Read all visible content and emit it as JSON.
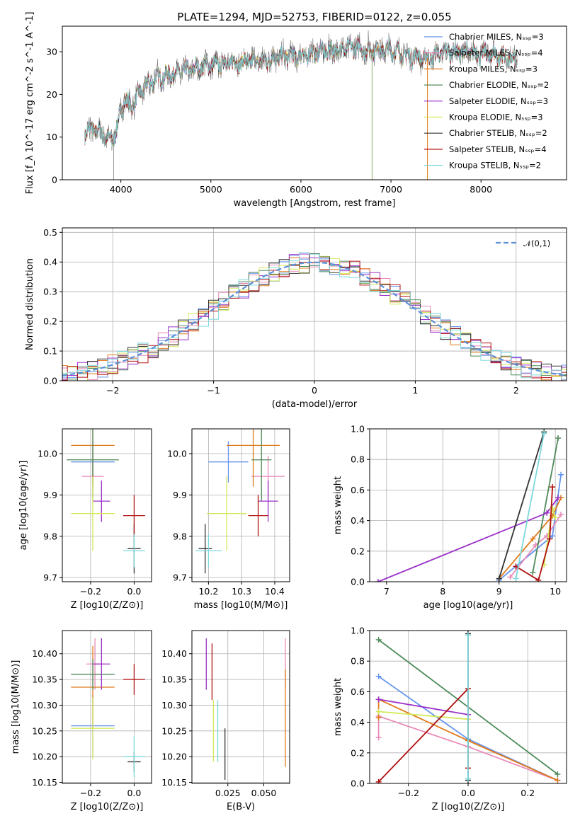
{
  "chart_data": [
    {
      "type": "line",
      "title": "PLATE=1294, MJD=52753, FIBERID=0122, z=0.055",
      "xlabel": "wavelength [Angstrom, rest frame]",
      "ylabel": "Flux [f_λ 10^-17 erg cm^-2 s^-1 A^-1]",
      "xlim": [
        3350,
        8950
      ],
      "ylim": [
        0,
        36
      ],
      "xticks": [
        4000,
        5000,
        6000,
        7000,
        8000
      ],
      "yticks": [
        0,
        10,
        20,
        30
      ],
      "legend_position": "right",
      "series": [
        {
          "name": "Chabrier MILES, N_SSP=3",
          "color": "#6495ed"
        },
        {
          "name": "Salpeter MILES, N_SSP=4",
          "color": "#e88ab8"
        },
        {
          "name": "Kroupa MILES, N_SSP=3",
          "color": "#e07b1c"
        },
        {
          "name": "Chabrier ELODIE, N_SSP=2",
          "color": "#4f8a5a"
        },
        {
          "name": "Salpeter ELODIE, N_SSP=3",
          "color": "#9b30c8"
        },
        {
          "name": "Kroupa ELODIE, N_SSP=3",
          "color": "#d4e85a"
        },
        {
          "name": "Chabrier STELIB, N_SSP=2",
          "color": "#333333"
        },
        {
          "name": "Salpeter STELIB, N_SSP=4",
          "color": "#b01010"
        },
        {
          "name": "Kroupa STELIB, N_SSP=2",
          "color": "#7dd8dc"
        }
      ],
      "spectrum_anchors": {
        "x": [
          3600,
          3700,
          3800,
          3900,
          3950,
          4000,
          4050,
          4100,
          4200,
          4300,
          4400,
          4600,
          4800,
          5000,
          5200,
          5400,
          5600,
          5800,
          6000,
          6200,
          6400,
          6600,
          6800,
          7000,
          7200,
          7400,
          7600,
          7800,
          8000,
          8200,
          8400,
          8900
        ],
        "y": [
          11,
          12,
          10.5,
          9,
          12,
          16,
          19,
          17,
          20,
          22,
          24,
          25,
          26,
          27,
          27.5,
          27.5,
          28,
          29,
          29,
          30,
          30.5,
          31,
          30.5,
          30.5,
          29,
          28.5,
          30,
          30,
          29.5,
          29,
          27.5,
          26
        ]
      }
    },
    {
      "type": "histogram",
      "xlabel": "(data-model)/error",
      "ylabel": "Normed distribution",
      "xlim": [
        -2.5,
        2.5
      ],
      "ylim": [
        0,
        0.515
      ],
      "xticks": [
        -2,
        -1,
        0,
        1,
        2
      ],
      "yticks": [
        0.0,
        0.1,
        0.2,
        0.3,
        0.4,
        0.5
      ],
      "reference_curve": {
        "name": "𝒩(0,1)",
        "mean": 0,
        "sigma": 1,
        "color": "#5b8fd6"
      },
      "bin_width": 0.1,
      "peak": 0.4
    },
    {
      "type": "scatter",
      "panel": "age vs Z",
      "xlabel": "Z [log10(Z/Z⊙)]",
      "ylabel": "age  [log10(age/yr)]",
      "xlim": [
        -0.33,
        0.08
      ],
      "ylim": [
        9.69,
        10.06
      ],
      "xticks": [
        -0.2,
        0.0
      ],
      "yticks": [
        9.7,
        9.8,
        9.9,
        10.0
      ],
      "points": [
        {
          "x": -0.19,
          "y": 9.98,
          "xerr": 0.1,
          "yerr": 0.05,
          "color": "#6495ed"
        },
        {
          "x": -0.19,
          "y": 9.945,
          "xerr": 0.05,
          "yerr": 0.05,
          "color": "#e88ab8"
        },
        {
          "x": -0.19,
          "y": 10.02,
          "xerr": 0.1,
          "yerr": 0.1,
          "color": "#e07b1c"
        },
        {
          "x": -0.19,
          "y": 9.985,
          "xerr": 0.12,
          "yerr": 0.1,
          "color": "#4f8a5a"
        },
        {
          "x": -0.15,
          "y": 9.885,
          "xerr": 0.04,
          "yerr": 0.05,
          "color": "#9b30c8"
        },
        {
          "x": -0.19,
          "y": 9.855,
          "xerr": 0.1,
          "yerr": 0.09,
          "color": "#d4e85a"
        },
        {
          "x": 0.0,
          "y": 9.77,
          "xerr": 0.03,
          "yerr": 0.06,
          "color": "#333333"
        },
        {
          "x": 0.0,
          "y": 9.85,
          "xerr": 0.05,
          "yerr": 0.05,
          "color": "#b01010"
        },
        {
          "x": 0.0,
          "y": 9.765,
          "xerr": 0.05,
          "yerr": 0.04,
          "color": "#7dd8dc"
        }
      ]
    },
    {
      "type": "scatter",
      "panel": "age vs mass",
      "xlabel": "mass [log10(M/M⊙)]",
      "ylabel": "",
      "xlim": [
        10.15,
        10.445
      ],
      "ylim": [
        9.69,
        10.06
      ],
      "xticks": [
        10.2,
        10.3,
        10.4
      ],
      "yticks": [
        9.7,
        9.8,
        9.9,
        10.0
      ],
      "points": [
        {
          "x": 10.26,
          "y": 9.98,
          "xerr": 0.06,
          "yerr": 0.05,
          "color": "#6495ed"
        },
        {
          "x": 10.38,
          "y": 9.945,
          "xerr": 0.05,
          "yerr": 0.05,
          "color": "#e88ab8"
        },
        {
          "x": 10.335,
          "y": 10.02,
          "xerr": 0.08,
          "yerr": 0.1,
          "color": "#e07b1c"
        },
        {
          "x": 10.36,
          "y": 9.985,
          "xerr": 0.03,
          "yerr": 0.1,
          "color": "#4f8a5a"
        },
        {
          "x": 10.38,
          "y": 9.885,
          "xerr": 0.03,
          "yerr": 0.05,
          "color": "#9b30c8"
        },
        {
          "x": 10.255,
          "y": 9.855,
          "xerr": 0.06,
          "yerr": 0.09,
          "color": "#d4e85a"
        },
        {
          "x": 10.19,
          "y": 9.77,
          "xerr": 0.02,
          "yerr": 0.06,
          "color": "#333333"
        },
        {
          "x": 10.35,
          "y": 9.85,
          "xerr": 0.03,
          "yerr": 0.05,
          "color": "#b01010"
        },
        {
          "x": 10.2,
          "y": 9.765,
          "xerr": 0.04,
          "yerr": 0.04,
          "color": "#7dd8dc"
        }
      ]
    },
    {
      "type": "line",
      "panel": "mass weight vs age",
      "xlabel": "age  [log10(age/yr)]",
      "ylabel": "mass weight",
      "xlim": [
        6.7,
        10.2
      ],
      "ylim": [
        0,
        1.0
      ],
      "xticks": [
        7,
        8,
        9,
        10
      ],
      "yticks": [
        0.0,
        0.2,
        0.4,
        0.6,
        0.8,
        1.0
      ],
      "series": [
        {
          "name": "Chabrier MILES",
          "color": "#6495ed",
          "x": [
            9.0,
            9.95,
            10.1
          ],
          "y": [
            0.01,
            0.3,
            0.7
          ]
        },
        {
          "name": "Salpeter MILES",
          "color": "#e88ab8",
          "x": [
            9.2,
            9.65,
            9.85,
            10.1
          ],
          "y": [
            0.03,
            0.24,
            0.3,
            0.44
          ]
        },
        {
          "name": "Kroupa MILES",
          "color": "#e07b1c",
          "x": [
            9.0,
            9.6,
            9.95,
            10.1
          ],
          "y": [
            0.02,
            0.28,
            0.43,
            0.55
          ]
        },
        {
          "name": "Chabrier ELODIE",
          "color": "#4f8a5a",
          "x": [
            9.6,
            10.05
          ],
          "y": [
            0.06,
            0.94
          ]
        },
        {
          "name": "Salpeter ELODIE",
          "color": "#9b30c8",
          "x": [
            6.85,
            9.85,
            10.05
          ],
          "y": [
            0.0,
            0.45,
            0.55
          ]
        },
        {
          "name": "Kroupa ELODIE",
          "color": "#d4e85a",
          "x": [
            9.8,
            9.95,
            10.0
          ],
          "y": [
            0.11,
            0.48,
            0.42
          ]
        },
        {
          "name": "Chabrier STELIB",
          "color": "#333333",
          "x": [
            9.0,
            9.8
          ],
          "y": [
            0.02,
            0.98
          ]
        },
        {
          "name": "Salpeter STELIB",
          "color": "#b01010",
          "x": [
            9.3,
            9.7,
            9.9,
            9.95
          ],
          "y": [
            0.1,
            0.01,
            0.28,
            0.62
          ]
        },
        {
          "name": "Kroupa STELIB",
          "color": "#7dd8dc",
          "x": [
            9.3,
            9.8
          ],
          "y": [
            0.02,
            0.97
          ]
        }
      ]
    },
    {
      "type": "scatter",
      "panel": "mass vs Z",
      "xlabel": "Z [log10(Z/Z⊙)]",
      "ylabel": "mass [log10(M/M⊙)]",
      "xlim": [
        -0.33,
        0.08
      ],
      "ylim": [
        10.148,
        10.445
      ],
      "xticks": [
        -0.2,
        0.0
      ],
      "yticks": [
        10.15,
        10.2,
        10.25,
        10.3,
        10.35,
        10.4
      ],
      "points": [
        {
          "x": -0.19,
          "y": 10.26,
          "xerr": 0.1,
          "yerr": 0.06,
          "color": "#6495ed"
        },
        {
          "x": -0.18,
          "y": 10.38,
          "xerr": 0.04,
          "yerr": 0.05,
          "color": "#e88ab8"
        },
        {
          "x": -0.19,
          "y": 10.335,
          "xerr": 0.1,
          "yerr": 0.08,
          "color": "#e07b1c"
        },
        {
          "x": -0.19,
          "y": 10.36,
          "xerr": 0.1,
          "yerr": 0.03,
          "color": "#4f8a5a"
        },
        {
          "x": -0.15,
          "y": 10.38,
          "xerr": 0.04,
          "yerr": 0.05,
          "color": "#9b30c8"
        },
        {
          "x": -0.19,
          "y": 10.255,
          "xerr": 0.1,
          "yerr": 0.06,
          "color": "#d4e85a"
        },
        {
          "x": 0.0,
          "y": 10.19,
          "xerr": 0.03,
          "yerr": 0.02,
          "color": "#333333"
        },
        {
          "x": 0.0,
          "y": 10.35,
          "xerr": 0.05,
          "yerr": 0.03,
          "color": "#b01010"
        },
        {
          "x": 0.0,
          "y": 10.2,
          "xerr": 0.05,
          "yerr": 0.04,
          "color": "#7dd8dc"
        }
      ]
    },
    {
      "type": "scatter",
      "panel": "mass vs E(B-V)",
      "xlabel": "E(B-V)",
      "ylabel": "",
      "xlim": [
        0.0,
        0.068
      ],
      "ylim": [
        10.148,
        10.445
      ],
      "xticks": [
        0.025,
        0.05
      ],
      "yticks": [
        10.15,
        10.2,
        10.25,
        10.3,
        10.35,
        10.4
      ],
      "points": [
        {
          "x": 0.01,
          "y": 10.38,
          "yerr": 0.05,
          "color": "#9b30c8"
        },
        {
          "x": 0.014,
          "y": 10.365,
          "yerr": 0.055,
          "color": "#b01010"
        },
        {
          "x": 0.015,
          "y": 10.25,
          "yerr": 0.06,
          "color": "#d4e85a"
        },
        {
          "x": 0.018,
          "y": 10.25,
          "yerr": 0.06,
          "color": "#7dd8dc"
        },
        {
          "x": 0.023,
          "y": 10.205,
          "yerr": 0.05,
          "color": "#333333"
        },
        {
          "x": 0.065,
          "y": 10.38,
          "yerr": 0.05,
          "color": "#e88ab8"
        },
        {
          "x": 0.065,
          "y": 10.275,
          "yerr": 0.095,
          "color": "#e07b1c"
        }
      ]
    },
    {
      "type": "line",
      "panel": "mass weight vs Z",
      "xlabel": "Z [log10(Z/Z⊙)]",
      "ylabel": "mass weight",
      "xlim": [
        -0.33,
        0.33
      ],
      "ylim": [
        0,
        1.0
      ],
      "xticks": [
        -0.2,
        0.0,
        0.2
      ],
      "yticks": [
        0.0,
        0.2,
        0.4,
        0.6,
        0.8,
        1.0
      ],
      "series": [
        {
          "name": "Chabrier MILES",
          "color": "#6495ed",
          "x": [
            -0.3,
            0.0,
            0.3
          ],
          "y": [
            0.7,
            0.29,
            0.02
          ]
        },
        {
          "name": "Salpeter MILES",
          "color": "#e88ab8",
          "x": [
            -0.3,
            -0.3,
            0.0,
            0.3
          ],
          "y": [
            0.3,
            0.44,
            0.24,
            0.02
          ]
        },
        {
          "name": "Kroupa MILES",
          "color": "#e07b1c",
          "x": [
            -0.3,
            -0.3,
            0.0,
            0.3
          ],
          "y": [
            0.43,
            0.55,
            0.28,
            0.02
          ]
        },
        {
          "name": "Chabrier ELODIE",
          "color": "#4f8a5a",
          "x": [
            -0.3,
            0.3
          ],
          "y": [
            0.94,
            0.06
          ]
        },
        {
          "name": "Salpeter ELODIE",
          "color": "#9b30c8",
          "x": [
            -0.3,
            0.0
          ],
          "y": [
            0.55,
            0.45
          ]
        },
        {
          "name": "Kroupa ELODIE",
          "color": "#d4e85a",
          "x": [
            -0.3,
            0.0
          ],
          "y": [
            0.47,
            0.42
          ]
        },
        {
          "name": "Chabrier STELIB",
          "color": "#333333",
          "x": [
            0.0,
            0.0
          ],
          "y": [
            0.02,
            0.98
          ]
        },
        {
          "name": "Salpeter STELIB",
          "color": "#b01010",
          "x": [
            -0.3,
            0.0,
            0.0
          ],
          "y": [
            0.01,
            0.62,
            0.1
          ]
        },
        {
          "name": "Kroupa STELIB",
          "color": "#7dd8dc",
          "x": [
            0.0,
            0.0
          ],
          "y": [
            0.03,
            0.97
          ]
        }
      ]
    }
  ]
}
